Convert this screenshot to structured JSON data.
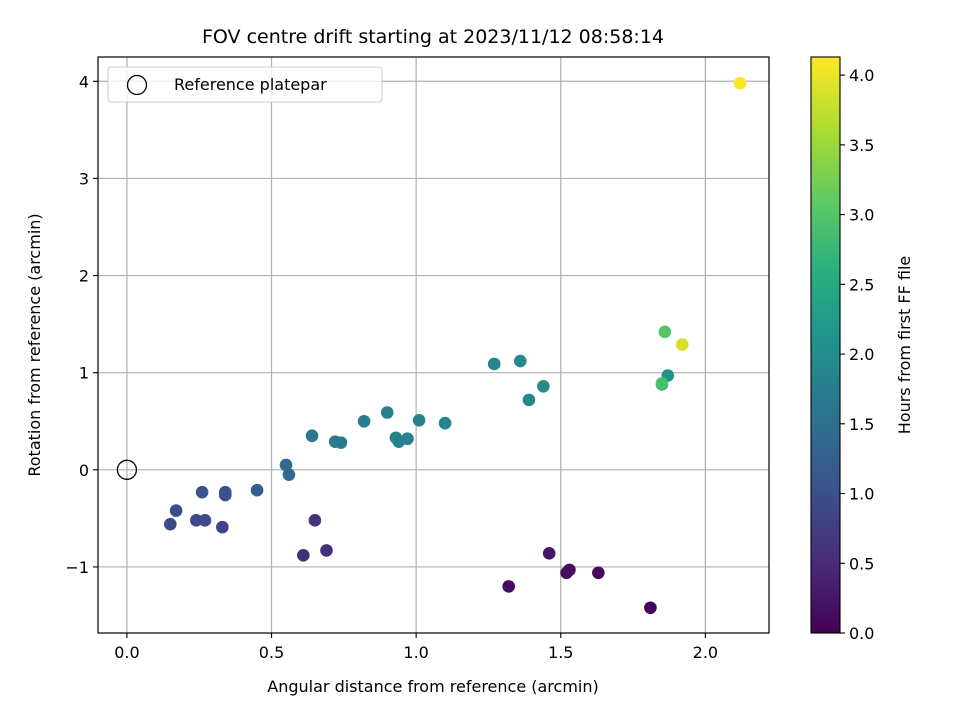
{
  "chart_data": {
    "type": "scatter",
    "title": "FOV centre drift starting at 2023/11/12 08:58:14",
    "xlabel": "Angular distance from reference (arcmin)",
    "ylabel": "Rotation from reference (arcmin)",
    "xlim": [
      -0.1,
      2.22
    ],
    "ylim": [
      -1.68,
      4.25
    ],
    "xticks": [
      0.0,
      0.5,
      1.0,
      1.5,
      2.0
    ],
    "xtick_labels": [
      "0.0",
      "0.5",
      "1.0",
      "1.5",
      "2.0"
    ],
    "yticks": [
      -1,
      0,
      1,
      2,
      3,
      4
    ],
    "ytick_labels": [
      "−1",
      "0",
      "1",
      "2",
      "3",
      "4"
    ],
    "grid": true,
    "legend": {
      "position": "top-left",
      "entries": [
        {
          "label": "Reference platepar",
          "marker": "open-circle",
          "x": 0.0,
          "y": 0.0
        }
      ]
    },
    "colorbar": {
      "label": "Hours from first FF file",
      "colormap": "viridis",
      "range": [
        0.0,
        4.13
      ],
      "ticks": [
        0.0,
        0.5,
        1.0,
        1.5,
        2.0,
        2.5,
        3.0,
        3.5,
        4.0
      ],
      "tick_labels": [
        "0.0",
        "0.5",
        "1.0",
        "1.5",
        "2.0",
        "2.5",
        "3.0",
        "3.5",
        "4.0"
      ]
    },
    "points": [
      {
        "x": 1.81,
        "y": -1.42,
        "c": 0.05
      },
      {
        "x": 1.32,
        "y": -1.2,
        "c": 0.1
      },
      {
        "x": 1.63,
        "y": -1.06,
        "c": 0.12
      },
      {
        "x": 1.52,
        "y": -1.06,
        "c": 0.15
      },
      {
        "x": 1.53,
        "y": -1.03,
        "c": 0.18
      },
      {
        "x": 1.46,
        "y": -0.86,
        "c": 0.25
      },
      {
        "x": 0.61,
        "y": -0.88,
        "c": 0.5
      },
      {
        "x": 0.69,
        "y": -0.83,
        "c": 0.55
      },
      {
        "x": 0.65,
        "y": -0.52,
        "c": 0.6
      },
      {
        "x": 0.33,
        "y": -0.59,
        "c": 0.85
      },
      {
        "x": 0.15,
        "y": -0.56,
        "c": 0.9
      },
      {
        "x": 0.24,
        "y": -0.52,
        "c": 0.92
      },
      {
        "x": 0.27,
        "y": -0.52,
        "c": 0.95
      },
      {
        "x": 0.17,
        "y": -0.42,
        "c": 0.97
      },
      {
        "x": 0.34,
        "y": -0.26,
        "c": 1.0
      },
      {
        "x": 0.34,
        "y": -0.23,
        "c": 1.02
      },
      {
        "x": 0.26,
        "y": -0.23,
        "c": 1.04
      },
      {
        "x": 0.45,
        "y": -0.21,
        "c": 1.2
      },
      {
        "x": 0.56,
        "y": -0.05,
        "c": 1.4
      },
      {
        "x": 0.55,
        "y": 0.05,
        "c": 1.42
      },
      {
        "x": 0.64,
        "y": 0.35,
        "c": 1.6
      },
      {
        "x": 0.72,
        "y": 0.29,
        "c": 1.7
      },
      {
        "x": 0.74,
        "y": 0.28,
        "c": 1.72
      },
      {
        "x": 0.82,
        "y": 0.5,
        "c": 1.75
      },
      {
        "x": 0.9,
        "y": 0.59,
        "c": 1.78
      },
      {
        "x": 0.93,
        "y": 0.33,
        "c": 1.8
      },
      {
        "x": 0.94,
        "y": 0.29,
        "c": 1.8
      },
      {
        "x": 0.97,
        "y": 0.32,
        "c": 1.82
      },
      {
        "x": 1.01,
        "y": 0.51,
        "c": 1.83
      },
      {
        "x": 1.1,
        "y": 0.48,
        "c": 1.85
      },
      {
        "x": 1.27,
        "y": 1.09,
        "c": 1.88
      },
      {
        "x": 1.36,
        "y": 1.12,
        "c": 1.92
      },
      {
        "x": 1.39,
        "y": 0.72,
        "c": 1.95
      },
      {
        "x": 1.44,
        "y": 0.86,
        "c": 1.97
      },
      {
        "x": 1.87,
        "y": 0.97,
        "c": 2.1
      },
      {
        "x": 1.85,
        "y": 0.88,
        "c": 2.3
      },
      {
        "x": 1.85,
        "y": 0.89,
        "c": 2.9
      },
      {
        "x": 1.86,
        "y": 1.42,
        "c": 3.0
      },
      {
        "x": 1.92,
        "y": 1.29,
        "c": 3.9
      },
      {
        "x": 2.12,
        "y": 3.98,
        "c": 4.13
      }
    ]
  }
}
